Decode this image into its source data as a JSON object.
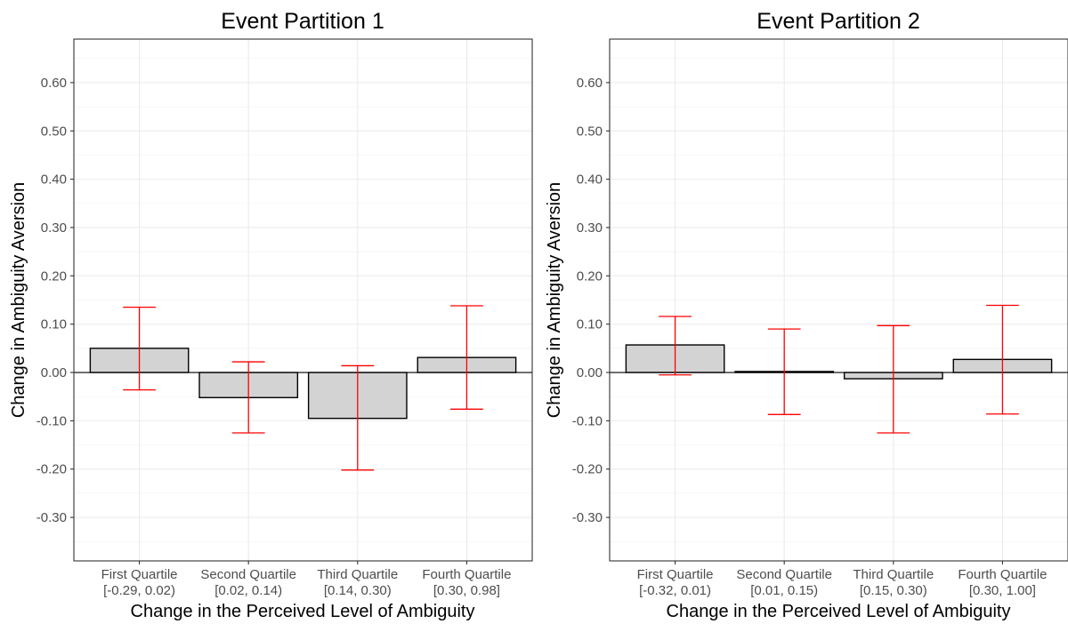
{
  "chart_data": [
    {
      "type": "bar",
      "title": "Event Partition 1",
      "xlabel": "Change in the Perceived Level of Ambiguity",
      "ylabel": "Change in Ambiguity Aversion",
      "ylim": [
        -0.39,
        0.69
      ],
      "yticks": [
        "0.60",
        "0.50",
        "0.40",
        "0.30",
        "0.20",
        "0.10",
        "0.00",
        "-0.10",
        "-0.20",
        "-0.30"
      ],
      "categories": [
        {
          "name": "First Quartile",
          "range": "[-0.29, 0.02)"
        },
        {
          "name": "Second Quartile",
          "range": "[0.02, 0.14)"
        },
        {
          "name": "Third Quartile",
          "range": "[0.14, 0.30)"
        },
        {
          "name": "Fourth Quartile",
          "range": "[0.30, 0.98]"
        }
      ],
      "values": [
        0.05,
        -0.052,
        -0.095,
        0.031
      ],
      "error_low": [
        -0.036,
        -0.125,
        -0.202,
        -0.076
      ],
      "error_high": [
        0.135,
        0.022,
        0.014,
        0.138
      ],
      "bar_color": "#d3d3d3",
      "error_color": "#ff0000",
      "grid": true
    },
    {
      "type": "bar",
      "title": "Event Partition 2",
      "xlabel": "Change in the Perceived Level of Ambiguity",
      "ylabel": "Change in Ambiguity Aversion",
      "ylim": [
        -0.39,
        0.69
      ],
      "yticks": [
        "0.60",
        "0.50",
        "0.40",
        "0.30",
        "0.20",
        "0.10",
        "0.00",
        "-0.10",
        "-0.20",
        "-0.30"
      ],
      "categories": [
        {
          "name": "First Quartile",
          "range": "[-0.32, 0.01)"
        },
        {
          "name": "Second Quartile",
          "range": "[0.01, 0.15)"
        },
        {
          "name": "Third Quartile",
          "range": "[0.15, 0.30)"
        },
        {
          "name": "Fourth Quartile",
          "range": "[0.30, 1.00]"
        }
      ],
      "values": [
        0.057,
        0.002,
        -0.013,
        0.027
      ],
      "error_low": [
        -0.005,
        -0.087,
        -0.125,
        -0.086
      ],
      "error_high": [
        0.116,
        0.09,
        0.097,
        0.139
      ],
      "bar_color": "#d3d3d3",
      "error_color": "#ff0000",
      "grid": true
    }
  ]
}
